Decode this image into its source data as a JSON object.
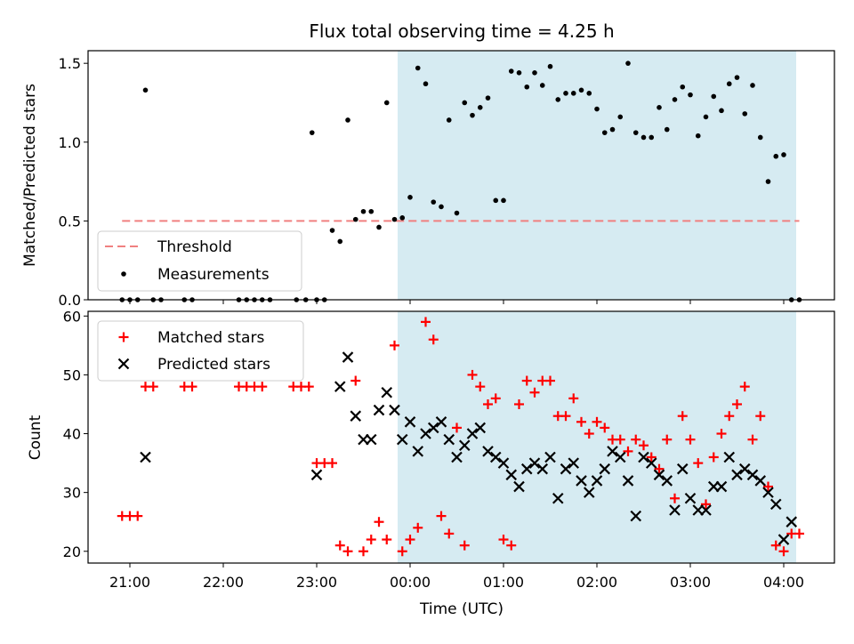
{
  "title": "Flux total observing time = 4.25 h",
  "colors": {
    "shade": "#add8e6",
    "threshold": "#f08080",
    "measurement": "#000000",
    "matched": "#ff0000",
    "predicted": "#000000"
  },
  "chart_data": [
    {
      "type": "scatter",
      "panel": "top",
      "ylabel": "Matched/Predicted stars",
      "ylim": [
        0,
        1.58
      ],
      "yticks": [
        0.0,
        0.5,
        1.0,
        1.5
      ],
      "yticklabels": [
        "0.0",
        "0.5",
        "1.0",
        "1.5"
      ],
      "shaded_x_range": [
        "23:52",
        "04:08"
      ],
      "legend": {
        "position": "lower-left",
        "entries": [
          "Threshold",
          "Measurements"
        ]
      },
      "series": [
        {
          "name": "Threshold",
          "kind": "dashed-line",
          "x": [
            "20:55",
            "04:10"
          ],
          "y": [
            0.5,
            0.5
          ]
        },
        {
          "name": "Measurements",
          "kind": "dots",
          "x": [
            "20:55",
            "21:00",
            "21:05",
            "21:10",
            "21:15",
            "21:20",
            "21:35",
            "21:40",
            "22:10",
            "22:15",
            "22:20",
            "22:25",
            "22:30",
            "22:47",
            "22:53",
            "22:57",
            "23:00",
            "23:05",
            "23:10",
            "23:15",
            "23:20",
            "23:25",
            "23:30",
            "23:35",
            "23:40",
            "23:45",
            "23:50",
            "23:55",
            "00:00",
            "00:05",
            "00:10",
            "00:15",
            "00:20",
            "00:25",
            "00:30",
            "00:35",
            "00:40",
            "00:45",
            "00:50",
            "00:55",
            "01:00",
            "01:05",
            "01:10",
            "01:15",
            "01:20",
            "01:25",
            "01:30",
            "01:35",
            "01:40",
            "01:45",
            "01:50",
            "01:55",
            "02:00",
            "02:05",
            "02:10",
            "02:15",
            "02:20",
            "02:25",
            "02:30",
            "02:35",
            "02:40",
            "02:45",
            "02:50",
            "02:55",
            "03:00",
            "03:05",
            "03:10",
            "03:15",
            "03:20",
            "03:25",
            "03:30",
            "03:35",
            "03:40",
            "03:45",
            "03:50",
            "03:55",
            "04:00",
            "04:05",
            "04:10"
          ],
          "y": [
            0.0,
            0.0,
            0.0,
            1.33,
            0.0,
            0.0,
            0.0,
            0.0,
            0.0,
            0.0,
            0.0,
            0.0,
            0.0,
            0.0,
            0.0,
            1.06,
            0.0,
            0.0,
            0.44,
            0.37,
            1.14,
            0.51,
            0.56,
            0.56,
            0.46,
            1.25,
            0.51,
            0.52,
            0.65,
            1.47,
            1.37,
            0.62,
            0.59,
            1.14,
            0.55,
            1.25,
            1.17,
            1.22,
            1.28,
            0.63,
            0.63,
            1.45,
            1.44,
            1.35,
            1.44,
            1.36,
            1.48,
            1.27,
            1.31,
            1.31,
            1.33,
            1.31,
            1.21,
            1.06,
            1.08,
            1.16,
            1.5,
            1.06,
            1.03,
            1.03,
            1.22,
            1.08,
            1.27,
            1.35,
            1.3,
            1.04,
            1.16,
            1.29,
            1.2,
            1.37,
            1.41,
            1.18,
            1.36,
            1.03,
            0.75,
            0.91,
            0.92,
            0.0,
            0.0
          ]
        }
      ]
    },
    {
      "type": "scatter",
      "panel": "bottom",
      "xlabel": "Time (UTC)",
      "ylabel": "Count",
      "ylim": [
        18,
        60.8
      ],
      "yticks": [
        20,
        30,
        40,
        50,
        60
      ],
      "yticklabels": [
        "20",
        "30",
        "40",
        "50",
        "60"
      ],
      "xticklabels": [
        "21:00",
        "22:00",
        "23:00",
        "00:00",
        "01:00",
        "02:00",
        "03:00",
        "04:00"
      ],
      "shaded_x_range": [
        "23:52",
        "04:08"
      ],
      "legend": {
        "position": "top-left",
        "entries": [
          "Matched stars",
          "Predicted stars"
        ]
      },
      "series": [
        {
          "name": "Matched stars",
          "marker": "+",
          "x": [
            "20:55",
            "21:00",
            "21:05",
            "21:10",
            "21:15",
            "21:35",
            "21:40",
            "22:10",
            "22:15",
            "22:20",
            "22:25",
            "22:45",
            "22:50",
            "22:55",
            "23:00",
            "23:05",
            "23:10",
            "23:15",
            "23:20",
            "23:25",
            "23:30",
            "23:35",
            "23:40",
            "23:45",
            "23:50",
            "23:55",
            "00:00",
            "00:05",
            "00:10",
            "00:15",
            "00:20",
            "00:25",
            "00:30",
            "00:35",
            "00:40",
            "00:45",
            "00:50",
            "00:55",
            "01:00",
            "01:05",
            "01:10",
            "01:15",
            "01:20",
            "01:25",
            "01:30",
            "01:35",
            "01:40",
            "01:45",
            "01:50",
            "01:55",
            "02:00",
            "02:05",
            "02:10",
            "02:15",
            "02:20",
            "02:25",
            "02:30",
            "02:35",
            "02:40",
            "02:45",
            "02:50",
            "02:55",
            "03:00",
            "03:05",
            "03:10",
            "03:15",
            "03:20",
            "03:25",
            "03:30",
            "03:35",
            "03:40",
            "03:45",
            "03:50",
            "03:55",
            "04:00",
            "04:05",
            "04:10"
          ],
          "y": [
            26,
            26,
            26,
            48,
            48,
            48,
            48,
            48,
            48,
            48,
            48,
            48,
            48,
            48,
            35,
            35,
            35,
            21,
            20,
            49,
            20,
            22,
            25,
            22,
            55,
            20,
            22,
            24,
            59,
            56,
            26,
            23,
            41,
            21,
            50,
            48,
            45,
            46,
            22,
            21,
            45,
            49,
            47,
            49,
            49,
            43,
            43,
            46,
            42,
            40,
            42,
            41,
            39,
            39,
            37,
            39,
            38,
            36,
            34,
            39,
            29,
            43,
            39,
            35,
            28,
            36,
            40,
            43,
            45,
            48,
            39,
            43,
            31,
            21,
            20,
            23,
            23
          ]
        },
        {
          "name": "Predicted stars",
          "marker": "x",
          "x": [
            "21:10",
            "23:00",
            "23:15",
            "23:20",
            "23:25",
            "23:30",
            "23:35",
            "23:40",
            "23:45",
            "23:50",
            "23:55",
            "00:00",
            "00:05",
            "00:10",
            "00:15",
            "00:20",
            "00:25",
            "00:30",
            "00:35",
            "00:40",
            "00:45",
            "00:50",
            "00:55",
            "01:00",
            "01:05",
            "01:10",
            "01:15",
            "01:20",
            "01:25",
            "01:30",
            "01:35",
            "01:40",
            "01:45",
            "01:50",
            "01:55",
            "02:00",
            "02:05",
            "02:10",
            "02:15",
            "02:20",
            "02:25",
            "02:30",
            "02:35",
            "02:40",
            "02:45",
            "02:50",
            "02:55",
            "03:00",
            "03:05",
            "03:10",
            "03:15",
            "03:20",
            "03:25",
            "03:30",
            "03:35",
            "03:40",
            "03:45",
            "03:50",
            "03:55",
            "04:00",
            "04:05"
          ],
          "y": [
            36,
            33,
            48,
            53,
            43,
            39,
            39,
            44,
            47,
            44,
            39,
            42,
            37,
            40,
            41,
            42,
            39,
            36,
            38,
            40,
            41,
            37,
            36,
            35,
            33,
            31,
            34,
            35,
            34,
            36,
            29,
            34,
            35,
            32,
            30,
            32,
            34,
            37,
            36,
            32,
            26,
            36,
            35,
            33,
            32,
            27,
            34,
            29,
            27,
            27,
            31,
            31,
            36,
            33,
            34,
            33,
            32,
            30,
            28,
            22,
            25
          ]
        }
      ]
    }
  ]
}
